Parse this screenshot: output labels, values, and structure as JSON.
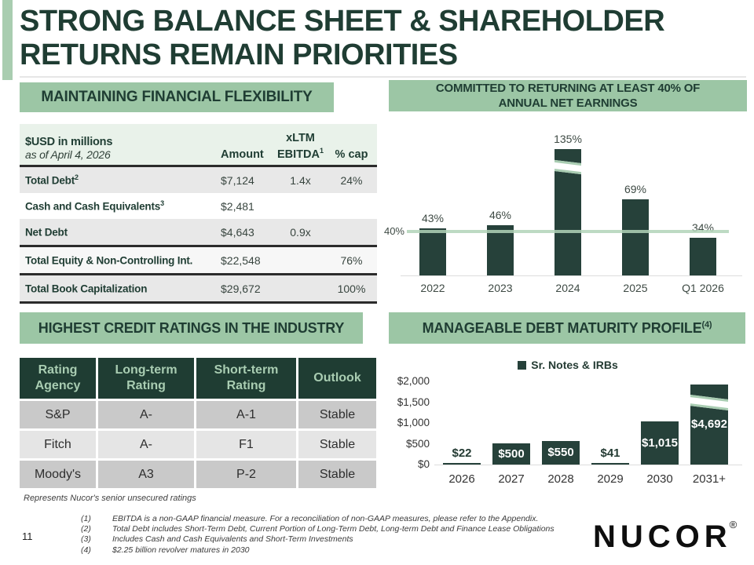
{
  "colors": {
    "dark_green_text": "#1F3D33",
    "bar_green": "#26413A",
    "band_green": "#9CC6A5",
    "strip_green": "#A9CDB0",
    "light_green_row": "#E9F2EA",
    "reference_line_green": "#B1D3B8",
    "row_gray": "#E8E8E8",
    "rating_gray": "#C9C9C9",
    "rating_light_gray": "#E5E5E5"
  },
  "slide": {
    "title_line1": "STRONG BALANCE SHEET & SHAREHOLDER",
    "title_line2": "RETURNS REMAIN PRIORITIES",
    "page_number": "11",
    "logo_text": "NUCOR",
    "logo_mark": "®"
  },
  "financial_flexibility": {
    "header": "MAINTAINING FINANCIAL FLEXIBILITY",
    "table": {
      "col1_title": "$USD in millions",
      "col1_subtitle": "as of April 4, 2026",
      "col_amount": "Amount",
      "col_ebitda_line1": "xLTM",
      "col_ebitda_line2": "EBITDA",
      "col_ebitda_sup": "1",
      "col_cap": "% cap",
      "rows": [
        {
          "label": "Total Debt",
          "sup": "2",
          "amount": "$7,124",
          "ebitda": "1.4x",
          "cap": "24%"
        },
        {
          "label": "Cash and Cash Equivalents",
          "sup": "3",
          "amount": "$2,481",
          "ebitda": "",
          "cap": ""
        },
        {
          "label": "Net Debt",
          "sup": "",
          "amount": "$4,643",
          "ebitda": "0.9x",
          "cap": ""
        },
        {
          "label": "Total Equity & Non-Controlling Int.",
          "sup": "",
          "amount": "$22,548",
          "ebitda": "",
          "cap": "76%"
        },
        {
          "label": "Total Book Capitalization",
          "sup": "",
          "amount": "$29,672",
          "ebitda": "",
          "cap": "100%"
        }
      ]
    }
  },
  "returns_panel": {
    "header_line1": "COMMITTED TO RETURNING AT LEAST 40% OF",
    "header_line2": "ANNUAL NET EARNINGS"
  },
  "debt_panel": {
    "header": "MANAGEABLE DEBT MATURITY PROFILE",
    "header_sup": "(4)"
  },
  "credit_ratings": {
    "header": "HIGHEST CREDIT RATINGS IN THE INDUSTRY",
    "table": {
      "columns": [
        {
          "line1": "Rating",
          "line2": "Agency"
        },
        {
          "line1": "Long-term",
          "line2": "Rating"
        },
        {
          "line1": "Short-term",
          "line2": "Rating"
        },
        {
          "line1": "Outlook",
          "line2": ""
        }
      ],
      "rows": [
        {
          "agency": "S&P",
          "long_term": "A-",
          "short_term": "A-1",
          "outlook": "Stable"
        },
        {
          "agency": "Fitch",
          "long_term": "A-",
          "short_term": "F1",
          "outlook": "Stable"
        },
        {
          "agency": "Moody's",
          "long_term": "A3",
          "short_term": "P-2",
          "outlook": "Stable"
        }
      ]
    },
    "footnote": "Represents Nucor's senior unsecured ratings"
  },
  "footnotes": [
    {
      "num": "(1)",
      "text": "EBITDA is a non-GAAP financial measure. For a reconciliation of non-GAAP measures, please refer to the Appendix."
    },
    {
      "num": "(2)",
      "text": "Total Debt includes Short-Term Debt, Current Portion of Long-Term Debt, Long-term Debt and Finance Lease Obligations"
    },
    {
      "num": "(3)",
      "text": "Includes Cash and Cash Equivalents and Short-Term Investments"
    },
    {
      "num": "(4)",
      "text": "$2.25 billion revolver matures in 2030"
    }
  ],
  "chart_data": [
    {
      "id": "returns",
      "type": "bar",
      "title": "COMMITTED TO RETURNING AT LEAST 40% OF ANNUAL NET EARNINGS",
      "categories": [
        "2022",
        "2023",
        "2024",
        "2025",
        "Q1 2026"
      ],
      "values": [
        43,
        46,
        135,
        69,
        34
      ],
      "labels": [
        "43%",
        "46%",
        "135%",
        "69%",
        "34%"
      ],
      "label_placement": [
        "above",
        "above",
        "above",
        "above",
        "above"
      ],
      "reference_line": {
        "value": 40,
        "label": "40%"
      },
      "broken_bars": [
        2
      ],
      "bar_color": "#26413A",
      "ylim": [
        0,
        115
      ],
      "grid": false,
      "legend_position": "none"
    },
    {
      "id": "debt-maturity",
      "type": "bar",
      "title": "MANAGEABLE DEBT MATURITY PROFILE(4)",
      "legend": [
        "Sr. Notes & IRBs"
      ],
      "legend_position": "top",
      "categories": [
        "2026",
        "2027",
        "2028",
        "2029",
        "2030",
        "2031+"
      ],
      "values": [
        22,
        500,
        550,
        41,
        1015,
        4692
      ],
      "labels": [
        "$22",
        "$500",
        "$550",
        "$41",
        "$1,015",
        "$4,692"
      ],
      "label_placement": [
        "above",
        "inside",
        "inside",
        "above",
        "inside",
        "inside"
      ],
      "y_ticks": [
        "$0",
        "$500",
        "$1,000",
        "$1,500",
        "$2,000"
      ],
      "ylim": [
        0,
        2000
      ],
      "broken_bars": [
        5
      ],
      "bar_color": "#26413A",
      "grid": false
    }
  ]
}
